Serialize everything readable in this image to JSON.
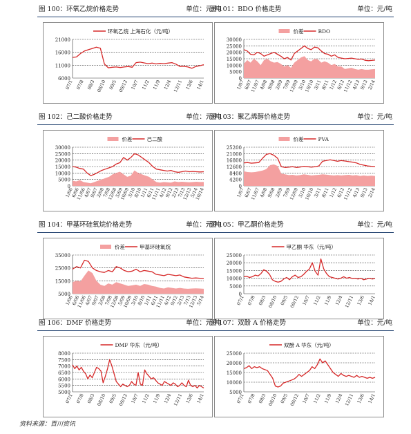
{
  "footer": "资料来源：百川资讯",
  "chart_data": [
    {
      "id": "c100",
      "type": "line",
      "header": "图 100：环氧乙烷价格走势",
      "unit": "单位：元/吨",
      "series": [
        {
          "name": "环氧乙烷 上海石化（元/吨）",
          "color": "#d62828",
          "values": [
            14000,
            14200,
            15500,
            16500,
            17000,
            17500,
            18000,
            17600,
            11500,
            10000,
            10200,
            10300,
            10100,
            10300,
            10500,
            10200,
            12000,
            12200,
            11900,
            11600,
            11800,
            11500,
            11700,
            11600,
            11800,
            12000,
            11400,
            10500,
            10600,
            10300,
            9800,
            10500,
            10800,
            11200
          ]
        }
      ],
      "ylim": [
        6000,
        21000
      ],
      "yticks": [
        6000,
        11000,
        16000,
        21000
      ],
      "xticks": [
        "07/1",
        "07/8",
        "08/3",
        "08/10",
        "09/5",
        "09/12",
        "10/7",
        "11/2",
        "11/9",
        "12/4",
        "12/11",
        "13/6",
        "14/1"
      ]
    },
    {
      "id": "c101",
      "type": "area+line",
      "header": "图 101：BDO 价格走势",
      "unit": "单位：元/吨",
      "series": [
        {
          "name": "价差",
          "kind": "area",
          "color": "#f4a0a0",
          "values": [
            11000,
            14000,
            12000,
            15000,
            13000,
            10000,
            14000,
            15000,
            13000,
            12000,
            12500,
            11000,
            9000,
            10000,
            8000,
            12000,
            14000,
            16000,
            17000,
            14000,
            13000,
            15000,
            14500,
            12000,
            13000,
            12000,
            10000,
            11000,
            9000,
            9000,
            7000,
            7500,
            8000,
            7000,
            6500,
            7000,
            6500,
            6500,
            6800,
            7000
          ]
        },
        {
          "name": "BDO",
          "kind": "line",
          "color": "#d62828",
          "values": [
            22000,
            21000,
            18500,
            18000,
            20000,
            19000,
            17000,
            18000,
            19000,
            20000,
            18500,
            17000,
            15000,
            16000,
            14000,
            19000,
            21000,
            23000,
            25000,
            23000,
            22000,
            24000,
            23500,
            21000,
            19000,
            18500,
            17000,
            18000,
            16000,
            15500,
            15000,
            15200,
            15500,
            15000,
            14500,
            14800,
            13800,
            13500,
            13700,
            14000
          ]
        }
      ],
      "ylim": [
        0,
        30000
      ],
      "yticks": [
        0,
        5000,
        10000,
        15000,
        20000,
        25000,
        30000
      ],
      "xticks": [
        "1/07",
        "6/07",
        "11/07",
        "4/08",
        "9/08",
        "2/09",
        "7/09",
        "12/09",
        "5/10",
        "10/10",
        "3/11",
        "8/11",
        "1/12",
        "6/12",
        "11/12",
        "4/13",
        "9/13",
        "2/14"
      ]
    },
    {
      "id": "c102",
      "type": "area+line",
      "header": "图 102：己二酸价格走势",
      "unit": "单位：元/吨",
      "series": [
        {
          "name": "价差",
          "kind": "area",
          "color": "#f4a0a0",
          "values": [
            4000,
            3500,
            4500,
            3000,
            2500,
            2000,
            3000,
            4000,
            5000,
            6000,
            7000,
            9000,
            10000,
            11000,
            9000,
            7000,
            8000,
            12000,
            10000,
            9000,
            8000,
            7000,
            5000,
            3000,
            2500,
            3000,
            2800,
            2500,
            3500,
            3000,
            3200,
            3000,
            2800,
            3000,
            3200,
            3000,
            3100
          ]
        },
        {
          "name": "己二酸",
          "kind": "line",
          "color": "#d62828",
          "values": [
            15000,
            14500,
            13500,
            13000,
            10000,
            8000,
            9000,
            10500,
            12000,
            13000,
            14000,
            15000,
            17000,
            18000,
            22000,
            20000,
            22000,
            25000,
            24000,
            22000,
            20000,
            18000,
            15000,
            13000,
            12500,
            12000,
            11500,
            12000,
            11000,
            10500,
            11000,
            11500,
            11000,
            11200,
            11000,
            10800,
            11000
          ]
        }
      ],
      "ylim": [
        0,
        30000
      ],
      "yticks": [
        0,
        5000,
        10000,
        15000,
        20000,
        25000,
        30000
      ],
      "xticks": [
        "1/06",
        "6/06",
        "11/06",
        "4/07",
        "9/07",
        "2/08",
        "7/08",
        "12/08",
        "5/09",
        "10/09",
        "3/10",
        "8/10",
        "1/11",
        "6/11",
        "11/11",
        "4/12",
        "9/12",
        "2/13",
        "7/13",
        "12/13",
        "5/14",
        "10/14"
      ]
    },
    {
      "id": "c103",
      "type": "area+line",
      "header": "图 103：聚乙烯醇价格走势",
      "unit": "单位：元/吨",
      "series": [
        {
          "name": "价差",
          "kind": "area",
          "color": "#f4a0a0",
          "values": [
            9500,
            9000,
            8800,
            9000,
            9500,
            10000,
            11000,
            13500,
            14000,
            13000,
            8000,
            7500,
            7000,
            7200,
            6800,
            7000,
            7500,
            7200,
            6800,
            7000,
            7200,
            7500,
            7300,
            7000,
            6800,
            7000,
            6800,
            7000,
            7200,
            6800,
            7000,
            6500,
            6800,
            6500,
            6700,
            6500
          ]
        },
        {
          "name": "PVA",
          "kind": "line",
          "color": "#d62828",
          "values": [
            15000,
            15200,
            14800,
            15000,
            15200,
            18000,
            20500,
            21000,
            20000,
            18000,
            12500,
            12000,
            12200,
            12500,
            12000,
            12300,
            12800,
            12500,
            12200,
            12500,
            13000,
            16000,
            16500,
            17000,
            16500,
            16000,
            16500,
            16200,
            15800,
            15500,
            15000,
            14000,
            13500,
            13000,
            12800,
            12600
          ]
        }
      ],
      "ylim": [
        0,
        25200
      ],
      "yticks": [
        0,
        4200,
        8400,
        12600,
        16800,
        21000,
        25200
      ],
      "xticks": [
        "1/07",
        "6/07",
        "11/07",
        "4/08",
        "9/08",
        "2/09",
        "7/09",
        "12/09",
        "5/10",
        "10/10",
        "3/11",
        "8/11",
        "1/12",
        "6/12",
        "11/12",
        "4/13",
        "9/13",
        "2/14"
      ]
    },
    {
      "id": "c104",
      "type": "area+line",
      "header": "图 104：甲基环硅氧烷价格走势",
      "unit": "单位：元/吨",
      "series": [
        {
          "name": "价差",
          "kind": "area",
          "color": "#f4a0a0",
          "values": [
            14000,
            15000,
            14500,
            19000,
            23000,
            21000,
            15000,
            12000,
            11000,
            13000,
            12000,
            14000,
            13000,
            12000,
            11000,
            11500,
            12000,
            11000,
            12500,
            12000,
            11000,
            10500,
            9500,
            9000,
            10000,
            9500,
            9000,
            9500,
            9000,
            8800,
            9000,
            9200,
            9000,
            8800
          ]
        },
        {
          "name": "甲基环硅氧烷",
          "kind": "line",
          "color": "#d62828",
          "values": [
            24000,
            26000,
            25000,
            31000,
            30000,
            25000,
            23000,
            22000,
            21500,
            23000,
            22000,
            26000,
            25000,
            23000,
            22000,
            22500,
            24000,
            22000,
            23000,
            22500,
            22000,
            20000,
            19500,
            19000,
            20000,
            19500,
            19000,
            19500,
            18000,
            17500,
            17000,
            17200,
            17000,
            16800
          ]
        }
      ],
      "ylim": [
        5000,
        35000
      ],
      "yticks": [
        5000,
        15000,
        25000,
        35000
      ],
      "xticks": [
        "1/06",
        "6/06",
        "11/06",
        "4/07",
        "9/07",
        "2/08",
        "7/08",
        "12/08",
        "5/09",
        "10/09",
        "3/10",
        "8/10",
        "1/11",
        "6/11",
        "11/11",
        "4/12",
        "9/12",
        "2/13",
        "7/13",
        "12/13",
        "5/14"
      ]
    },
    {
      "id": "c105",
      "type": "line",
      "header": "图 105：甲乙酮价格走势",
      "unit": "单位：元/吨",
      "series": [
        {
          "name": "甲乙酮 华东（元/吨）",
          "color": "#d62828",
          "values": [
            11000,
            11200,
            10500,
            11000,
            12000,
            11500,
            13000,
            15500,
            14500,
            12500,
            9000,
            8000,
            7500,
            8000,
            9500,
            10500,
            9000,
            11000,
            12000,
            10500,
            11000,
            12500,
            14500,
            16000,
            20000,
            14500,
            12000,
            22500,
            16000,
            13000,
            11000,
            10500,
            10000,
            9500,
            10000,
            11000,
            10000,
            10500,
            9800,
            10000,
            9500,
            10000,
            9000,
            9500,
            10000,
            9500,
            9800
          ]
        }
      ],
      "ylim": [
        0,
        25000
      ],
      "yticks": [
        0,
        5000,
        10000,
        15000,
        20000,
        25000
      ],
      "xticks": [
        "07/1",
        "07/8",
        "08/3",
        "08/10",
        "09/5",
        "09/12",
        "10/7",
        "11/2",
        "11/9",
        "12/4",
        "12/11",
        "13/6",
        "14/1"
      ]
    },
    {
      "id": "c106",
      "type": "line",
      "header": "图 106：DMF 价格走势",
      "unit": "单位：元/吨",
      "series": [
        {
          "name": "DMF 华东（元/吨）",
          "color": "#d62828",
          "values": [
            7100,
            6800,
            7000,
            6700,
            6900,
            6600,
            6400,
            6000,
            6300,
            6100,
            6500,
            6900,
            6800,
            6600,
            5700,
            6200,
            6800,
            7500,
            7000,
            6400,
            5800,
            5600,
            5400,
            5600,
            5500,
            5400,
            5500,
            5800,
            5600,
            5500,
            6500,
            5600,
            5500,
            6700,
            6400,
            6200,
            6000,
            6100,
            5900,
            5700,
            5600,
            5500,
            5800,
            5700,
            5600,
            5500,
            5700,
            5600,
            5400,
            5500,
            5700,
            5500,
            5400,
            5900,
            5500,
            5400,
            5500,
            5300,
            5500,
            5400,
            5300
          ]
        }
      ],
      "ylim": [
        5000,
        8000
      ],
      "yticks": [
        5000,
        5500,
        6000,
        6500,
        7000,
        7500,
        8000
      ],
      "xticks": [
        "07/1",
        "07/8",
        "08/3",
        "08/10",
        "09/5",
        "09/12",
        "10/7",
        "11/2",
        "11/9",
        "12/4",
        "12/11",
        "13/6",
        "14/1"
      ]
    },
    {
      "id": "c107",
      "type": "line",
      "header": "图 107：双酚 A 价格走势",
      "unit": "单位：元/吨",
      "series": [
        {
          "name": "双酚 A 华东（元/吨）",
          "color": "#d62828",
          "values": [
            17000,
            17500,
            18500,
            17000,
            18000,
            17500,
            18000,
            17000,
            16500,
            16000,
            14000,
            12000,
            8000,
            7500,
            8000,
            9500,
            10000,
            10500,
            11000,
            11500,
            12500,
            14000,
            13000,
            14000,
            15000,
            16000,
            18000,
            17000,
            19000,
            22000,
            20000,
            21000,
            19000,
            17000,
            15000,
            14000,
            13000,
            14500,
            13500,
            13000,
            13500,
            13000,
            12500,
            13500,
            12500,
            13000,
            12500,
            12000,
            12500,
            12000,
            12500
          ]
        }
      ],
      "ylim": [
        5000,
        25000
      ],
      "yticks": [
        5000,
        10000,
        15000,
        20000,
        25000
      ],
      "xticks": [
        "07/1",
        "07/8",
        "08/3",
        "08/10",
        "09/5",
        "09/12",
        "10/7",
        "11/2",
        "11/9",
        "12/4",
        "12/11",
        "13/6",
        "14/1"
      ]
    }
  ]
}
